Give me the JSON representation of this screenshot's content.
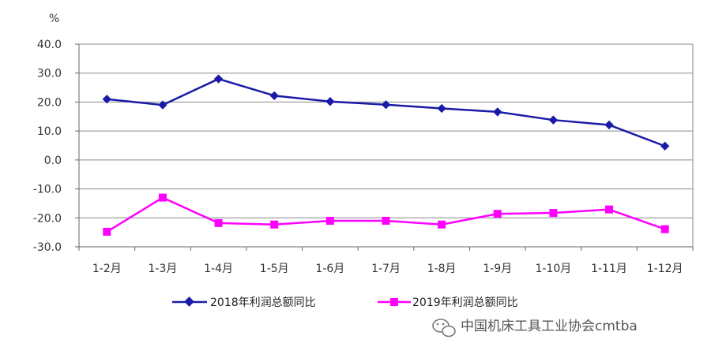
{
  "chart_data": {
    "type": "line",
    "unit_label": "%",
    "categories": [
      "1-2月",
      "1-3月",
      "1-4月",
      "1-5月",
      "1-6月",
      "1-7月",
      "1-8月",
      "1-9月",
      "1-10月",
      "1-11月",
      "1-12月"
    ],
    "y_ticks": [
      "40.0",
      "30.0",
      "20.0",
      "10.0",
      "0.0",
      "-10.0",
      "-20.0",
      "-30.0"
    ],
    "ylim": [
      -30,
      40
    ],
    "grid": true,
    "legend_position": "bottom",
    "series": [
      {
        "name": "2018年利润总额同比",
        "color": "#1a1aa8",
        "marker": "diamond",
        "values": [
          21.0,
          19.0,
          28.0,
          22.2,
          20.2,
          19.1,
          17.8,
          16.6,
          13.8,
          12.1,
          4.8
        ]
      },
      {
        "name": "2019年利润总额同比",
        "color": "#ff00ff",
        "marker": "square",
        "values": [
          -24.8,
          -13.0,
          -21.8,
          -22.3,
          -21.0,
          -21.0,
          -22.3,
          -18.6,
          -18.3,
          -17.1,
          -23.9
        ]
      }
    ]
  },
  "watermark": {
    "text": "中国机床工具工业协会cmtba",
    "icon": "wechat-icon"
  }
}
